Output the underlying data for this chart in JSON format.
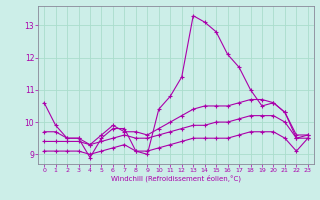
{
  "title": "",
  "xlabel": "Windchill (Refroidissement éolien,°C)",
  "background_color": "#cceee8",
  "grid_color": "#aaddcc",
  "line_color": "#aa00aa",
  "x_hours": [
    0,
    1,
    2,
    3,
    4,
    5,
    6,
    7,
    8,
    9,
    10,
    11,
    12,
    13,
    14,
    15,
    16,
    17,
    18,
    19,
    20,
    21,
    22,
    23
  ],
  "series": [
    [
      10.6,
      9.9,
      9.5,
      9.5,
      8.9,
      9.5,
      9.8,
      9.8,
      9.1,
      9.0,
      10.4,
      10.8,
      11.4,
      13.3,
      13.1,
      12.8,
      12.1,
      11.7,
      11.0,
      10.5,
      10.6,
      10.3,
      9.5,
      9.6
    ],
    [
      9.7,
      9.7,
      9.5,
      9.5,
      9.3,
      9.6,
      9.9,
      9.7,
      9.7,
      9.6,
      9.8,
      10.0,
      10.2,
      10.4,
      10.5,
      10.5,
      10.5,
      10.6,
      10.7,
      10.7,
      10.6,
      10.3,
      9.6,
      9.6
    ],
    [
      9.4,
      9.4,
      9.4,
      9.4,
      9.3,
      9.4,
      9.5,
      9.6,
      9.5,
      9.5,
      9.6,
      9.7,
      9.8,
      9.9,
      9.9,
      10.0,
      10.0,
      10.1,
      10.2,
      10.2,
      10.2,
      10.0,
      9.5,
      9.5
    ],
    [
      9.1,
      9.1,
      9.1,
      9.1,
      9.0,
      9.1,
      9.2,
      9.3,
      9.1,
      9.1,
      9.2,
      9.3,
      9.4,
      9.5,
      9.5,
      9.5,
      9.5,
      9.6,
      9.7,
      9.7,
      9.7,
      9.5,
      9.1,
      9.5
    ]
  ],
  "ylim": [
    8.7,
    13.6
  ],
  "yticks": [
    9,
    10,
    11,
    12,
    13
  ],
  "xticks": [
    0,
    1,
    2,
    3,
    4,
    5,
    6,
    7,
    8,
    9,
    10,
    11,
    12,
    13,
    14,
    15,
    16,
    17,
    18,
    19,
    20,
    21,
    22,
    23
  ]
}
